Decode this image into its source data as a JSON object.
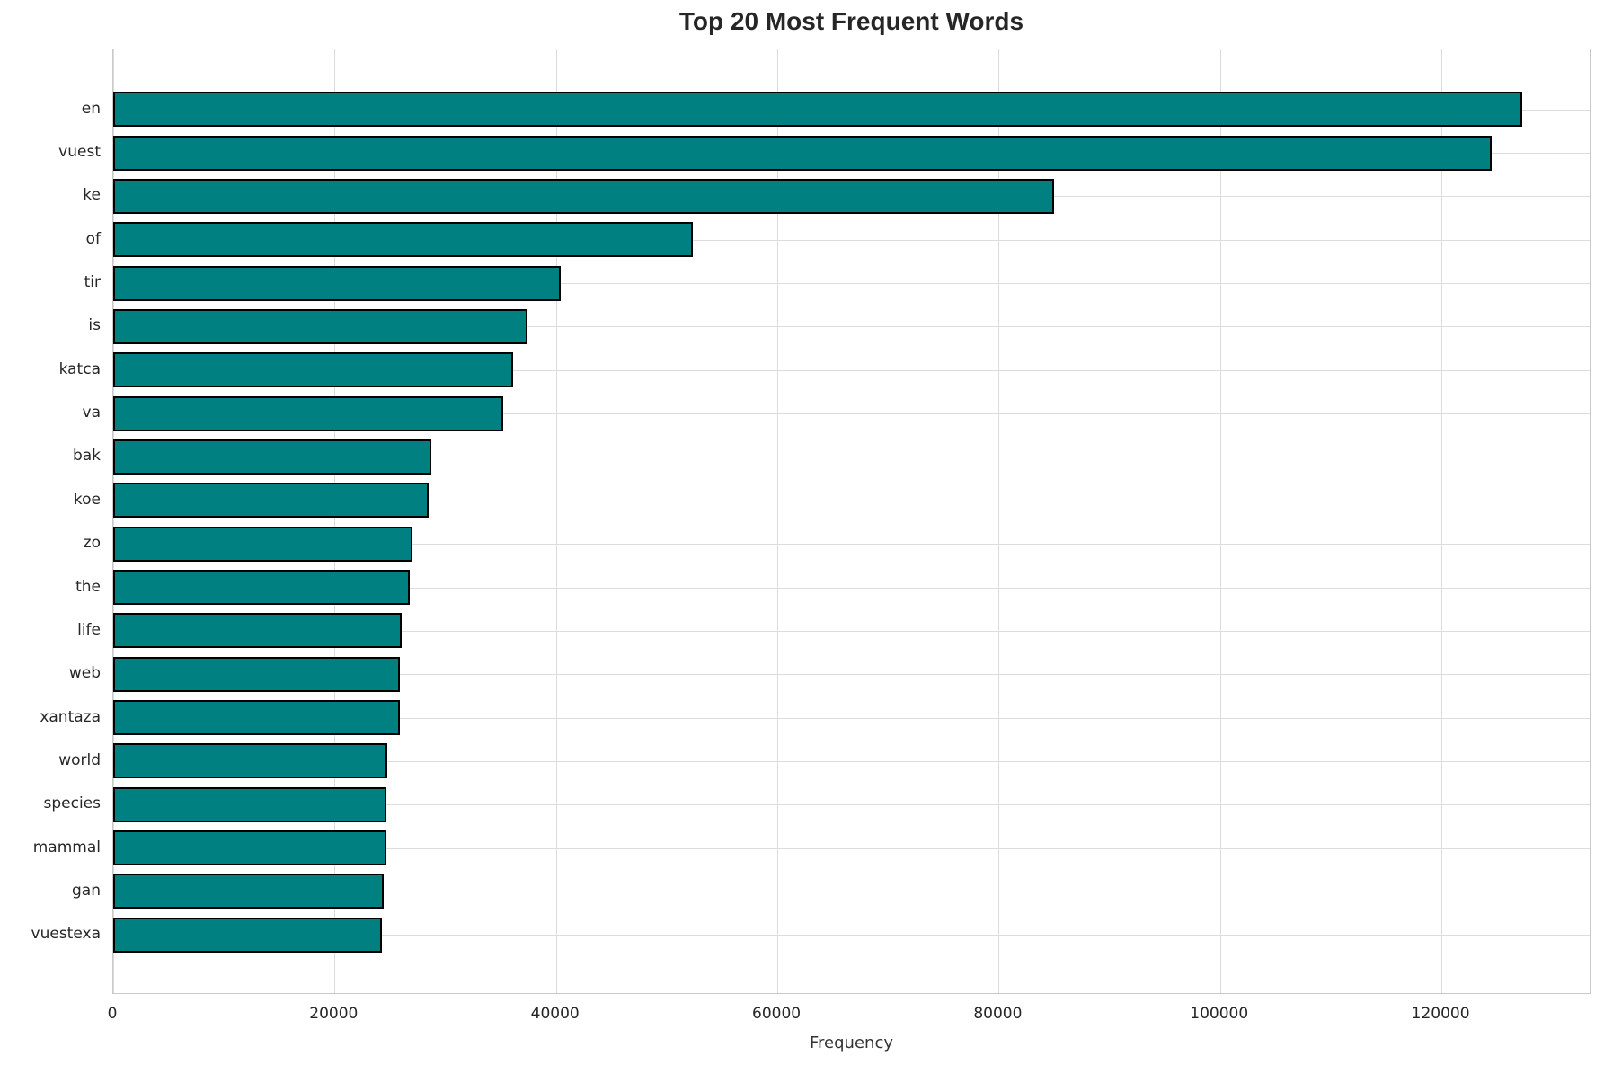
{
  "chart_data": {
    "type": "bar",
    "orientation": "horizontal",
    "title": "Top 20 Most Frequent Words",
    "xlabel": "Frequency",
    "ylabel": "",
    "categories": [
      "en",
      "vuest",
      "ke",
      "of",
      "tir",
      "is",
      "katca",
      "va",
      "bak",
      "koe",
      "zo",
      "the",
      "life",
      "web",
      "xantaza",
      "world",
      "species",
      "mammal",
      "gan",
      "vuestexa"
    ],
    "values": [
      127300,
      124500,
      85000,
      52400,
      40400,
      37400,
      36100,
      35200,
      28700,
      28500,
      27000,
      26800,
      26100,
      25900,
      25900,
      24750,
      24700,
      24700,
      24450,
      24250
    ],
    "xticks": [
      0,
      20000,
      40000,
      60000,
      80000,
      100000,
      120000
    ],
    "xtick_labels": [
      "0",
      "20000",
      "40000",
      "60000",
      "80000",
      "100000",
      "120000"
    ],
    "xlim": [
      0,
      133550
    ],
    "grid": true,
    "legend": false,
    "bar_color": "#008080",
    "bar_edge_color": "#000000",
    "grid_color": "#dcdcdc",
    "spine_color": "#c9c9c9",
    "text_color": "#262626",
    "background_color": "#ffffff"
  }
}
